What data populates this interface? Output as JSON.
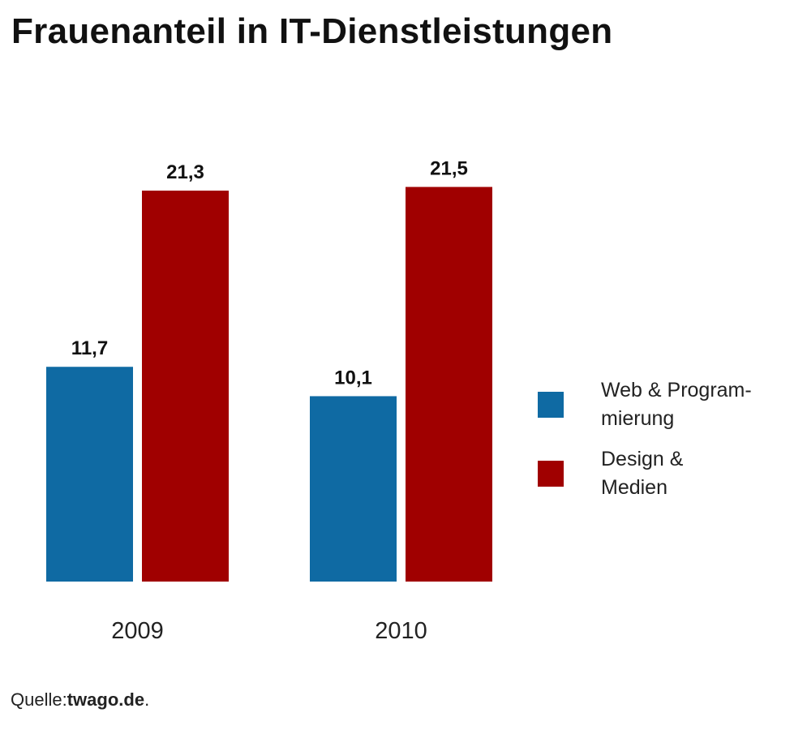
{
  "chart_data": {
    "type": "bar",
    "title": "Frauenanteil in IT-Dienstleistungen",
    "categories": [
      "2009",
      "2010"
    ],
    "series": [
      {
        "name": "Web & Programmierung",
        "legend_lines": [
          "Web & Program-",
          "mierung"
        ],
        "color": "#0f6aa3",
        "values": [
          11.7,
          10.1
        ],
        "labels": [
          "11,7",
          "10,1"
        ]
      },
      {
        "name": "Design & Medien",
        "legend_lines": [
          "Design &",
          "Medien"
        ],
        "color": "#a00000",
        "values": [
          21.3,
          21.5
        ],
        "labels": [
          "21,3",
          "21,5"
        ]
      }
    ],
    "xlabel": "",
    "ylabel": "",
    "ylim": [
      0,
      25
    ],
    "grid": false,
    "legend": "right"
  },
  "source": {
    "label": "Quelle:",
    "name": "twago.de",
    "suffix": "."
  }
}
